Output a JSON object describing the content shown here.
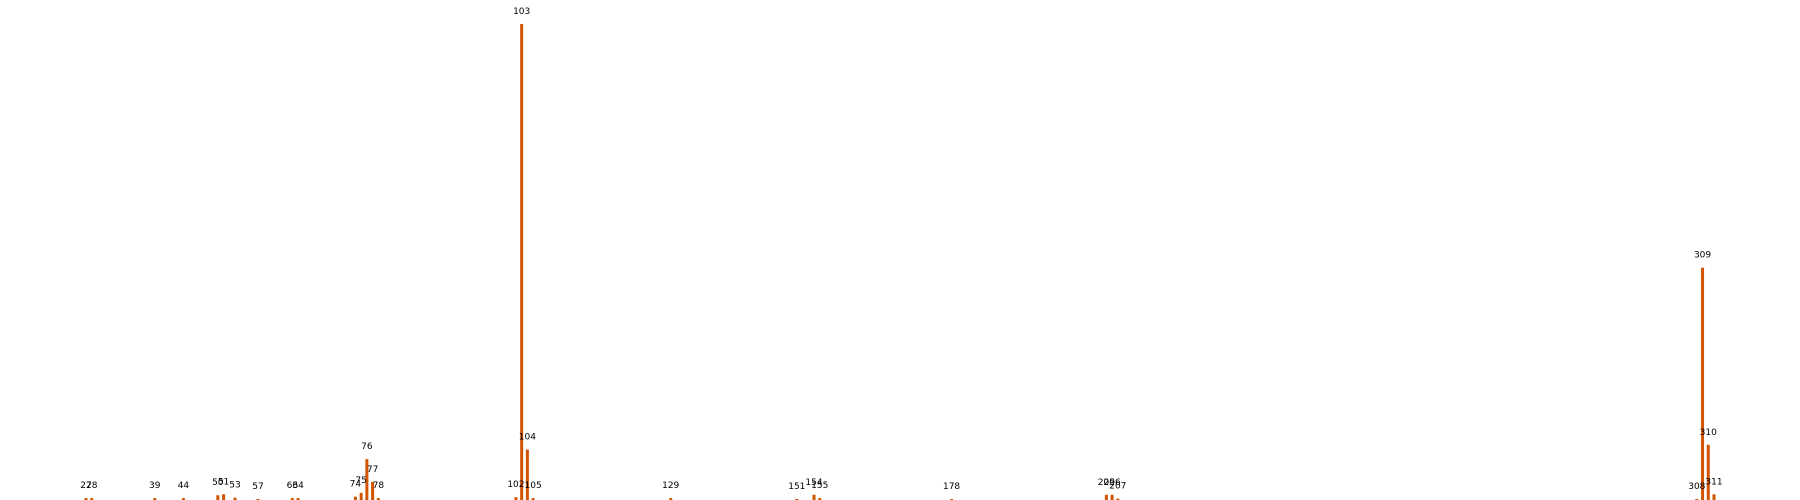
{
  "chart_data": {
    "type": "bar",
    "title": "",
    "xlabel": "",
    "ylabel": "",
    "grid": false,
    "axes_visible": false,
    "bar_color": "#d35400",
    "xlim": [
      12,
      326
    ],
    "ylim": [
      0,
      100
    ],
    "points": [
      {
        "x": 27,
        "y": 0.4,
        "label": "27"
      },
      {
        "x": 28,
        "y": 0.4,
        "label": "28"
      },
      {
        "x": 39,
        "y": 0.4,
        "label": "39"
      },
      {
        "x": 44,
        "y": 0.4,
        "label": "44"
      },
      {
        "x": 50,
        "y": 1.0,
        "label": "50"
      },
      {
        "x": 51,
        "y": 1.2,
        "label": "51"
      },
      {
        "x": 53,
        "y": 0.5,
        "label": "53"
      },
      {
        "x": 57,
        "y": 0.2,
        "label": "57"
      },
      {
        "x": 63,
        "y": 0.4,
        "label": "63"
      },
      {
        "x": 64,
        "y": 0.4,
        "label": "64"
      },
      {
        "x": 74,
        "y": 0.7,
        "label": "74"
      },
      {
        "x": 75,
        "y": 1.5,
        "label": "75"
      },
      {
        "x": 76,
        "y": 8.6,
        "label": "76"
      },
      {
        "x": 77,
        "y": 3.8,
        "label": "77"
      },
      {
        "x": 78,
        "y": 0.4,
        "label": "78"
      },
      {
        "x": 102,
        "y": 0.6,
        "label": "102"
      },
      {
        "x": 103,
        "y": 100,
        "label": "103"
      },
      {
        "x": 104,
        "y": 10.6,
        "label": "104"
      },
      {
        "x": 105,
        "y": 0.4,
        "label": "105"
      },
      {
        "x": 129,
        "y": 0.4,
        "label": "129"
      },
      {
        "x": 151,
        "y": 0.2,
        "label": "151"
      },
      {
        "x": 154,
        "y": 1.1,
        "label": "154"
      },
      {
        "x": 155,
        "y": 0.4,
        "label": "155"
      },
      {
        "x": 178,
        "y": 0.2,
        "label": "178"
      },
      {
        "x": 205,
        "y": 1.1,
        "label": "205"
      },
      {
        "x": 206,
        "y": 1.1,
        "label": "206"
      },
      {
        "x": 207,
        "y": 0.3,
        "label": "207"
      },
      {
        "x": 308,
        "y": 0.2,
        "label": "308"
      },
      {
        "x": 309,
        "y": 48.8,
        "label": "309"
      },
      {
        "x": 310,
        "y": 11.6,
        "label": "310"
      },
      {
        "x": 311,
        "y": 1.2,
        "label": "311"
      }
    ]
  }
}
